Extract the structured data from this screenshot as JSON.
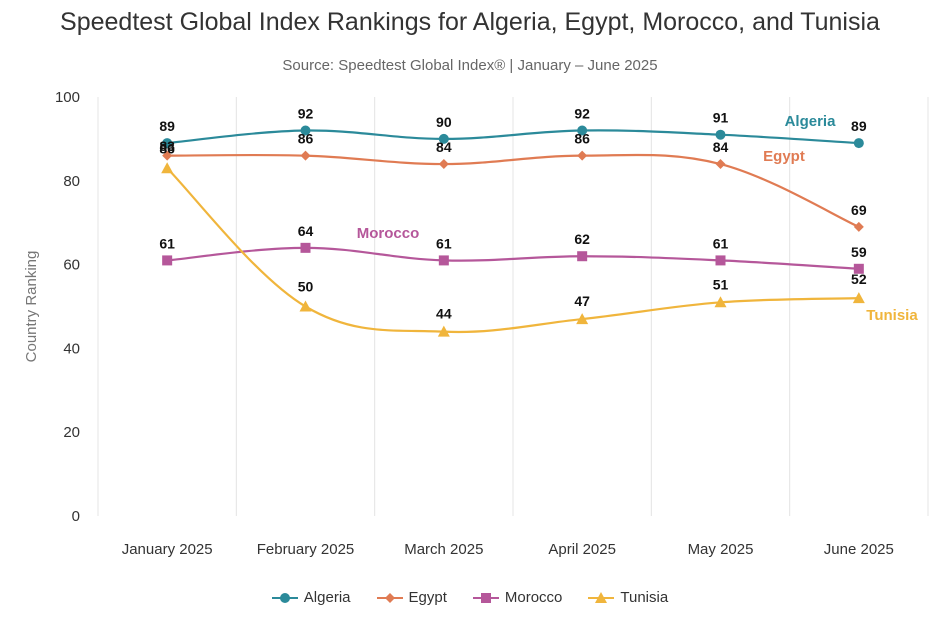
{
  "header": {
    "title": "Speedtest Global Index Rankings for Algeria, Egypt, Morocco, and Tunisia",
    "subtitle": "Source: Speedtest Global Index® | January – June 2025"
  },
  "chart_data": {
    "type": "line",
    "title": "Speedtest Global Index Rankings for Algeria, Egypt, Morocco, and Tunisia",
    "subtitle": "Source: Speedtest Global Index® | January – June 2025",
    "xlabel": "",
    "ylabel": "Country Ranking",
    "ylim": [
      0,
      100
    ],
    "yticks": [
      0,
      20,
      40,
      60,
      80,
      100
    ],
    "grid": "vertical",
    "legend_position": "bottom",
    "categories": [
      "January 2025",
      "February 2025",
      "March 2025",
      "April 2025",
      "May 2025",
      "June 2025"
    ],
    "series": [
      {
        "name": "Algeria",
        "color": "#2b8a9a",
        "marker": "circle",
        "values": [
          89,
          92,
          90,
          92,
          91,
          89
        ]
      },
      {
        "name": "Egypt",
        "color": "#e07b53",
        "marker": "diamond",
        "values": [
          86,
          86,
          84,
          86,
          84,
          69
        ]
      },
      {
        "name": "Morocco",
        "color": "#b5579a",
        "marker": "square",
        "values": [
          61,
          64,
          61,
          62,
          61,
          59
        ]
      },
      {
        "name": "Tunisia",
        "color": "#f0b53c",
        "marker": "triangle",
        "values": [
          83,
          50,
          44,
          47,
          51,
          52
        ]
      }
    ]
  }
}
